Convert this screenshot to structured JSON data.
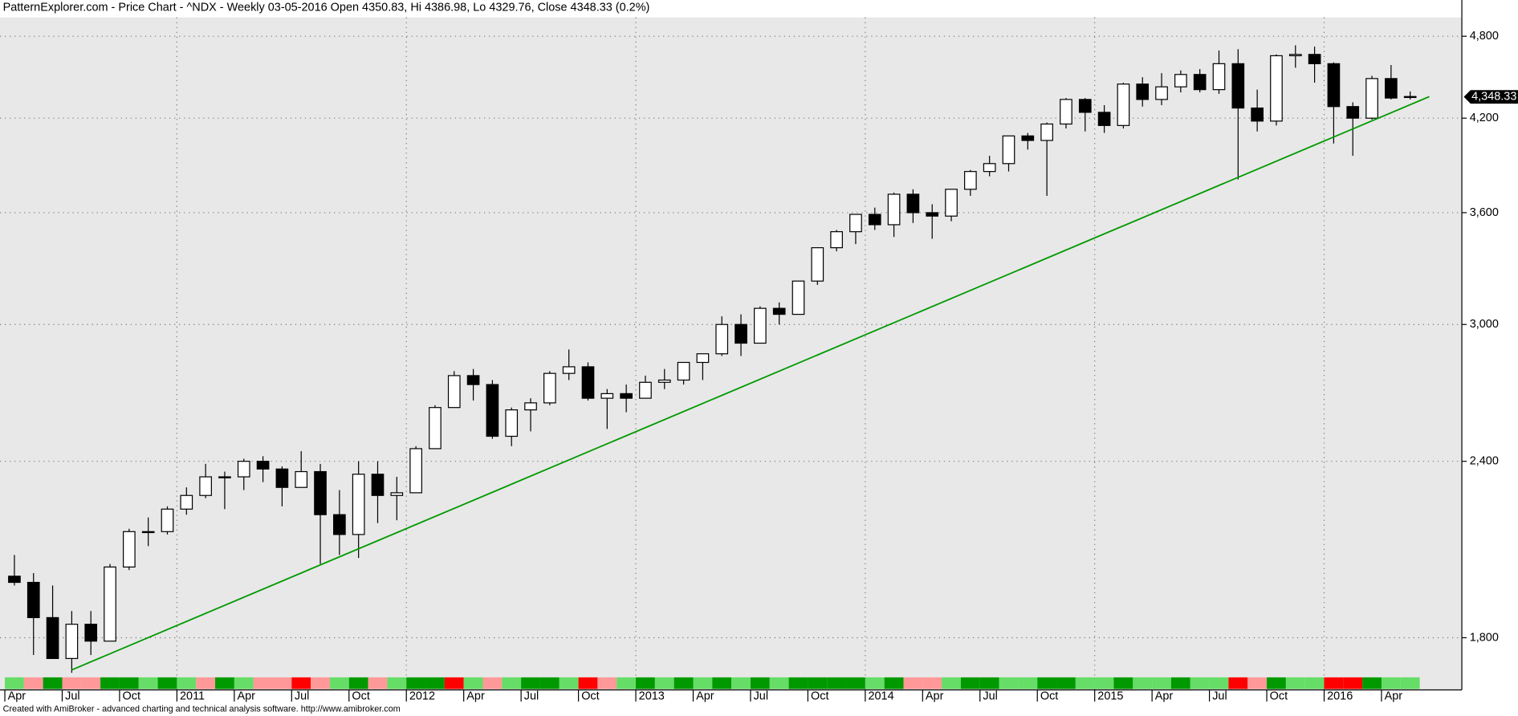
{
  "chart_data": {
    "type": "candlestick",
    "title": "PatternExplorer.com - Price Chart - ^NDX - Weekly 03-05-2016 Open 4350.83, Hi 4386.98, Lo 4329.76, Close 4348.33 (0.2%)",
    "footer": "Created with AmiBroker - advanced charting and technical analysis software. http://www.amibroker.com",
    "x": [
      "2010-04",
      "2010-05",
      "2010-06",
      "2010-07",
      "2010-08",
      "2010-09",
      "2010-10",
      "2010-11",
      "2010-12",
      "2011-01",
      "2011-02",
      "2011-03",
      "2011-04",
      "2011-05",
      "2011-06",
      "2011-07",
      "2011-08",
      "2011-09",
      "2011-10",
      "2011-11",
      "2011-12",
      "2012-01",
      "2012-02",
      "2012-03",
      "2012-04",
      "2012-05",
      "2012-06",
      "2012-07",
      "2012-08",
      "2012-09",
      "2012-10",
      "2012-11",
      "2012-12",
      "2013-01",
      "2013-02",
      "2013-03",
      "2013-04",
      "2013-05",
      "2013-06",
      "2013-07",
      "2013-08",
      "2013-09",
      "2013-10",
      "2013-11",
      "2013-12",
      "2014-01",
      "2014-02",
      "2014-03",
      "2014-04",
      "2014-05",
      "2014-06",
      "2014-07",
      "2014-08",
      "2014-09",
      "2014-10",
      "2014-11",
      "2014-12",
      "2015-01",
      "2015-02",
      "2015-03",
      "2015-04",
      "2015-05",
      "2015-06",
      "2015-07",
      "2015-08",
      "2015-09",
      "2015-10",
      "2015-11",
      "2015-12",
      "2016-01",
      "2016-02",
      "2016-03",
      "2016-04",
      "2016-05"
    ],
    "open": [
      1990,
      1970,
      1860,
      1740,
      1840,
      1790,
      2020,
      2140,
      2140,
      2220,
      2270,
      2340,
      2340,
      2400,
      2370,
      2300,
      2360,
      2200,
      2130,
      2350,
      2270,
      2280,
      2450,
      2620,
      2760,
      2720,
      2500,
      2610,
      2640,
      2770,
      2800,
      2660,
      2680,
      2660,
      2730,
      2740,
      2820,
      2860,
      3000,
      2910,
      3080,
      3050,
      3220,
      3400,
      3490,
      3590,
      3530,
      3710,
      3600,
      3580,
      3740,
      3850,
      3900,
      4080,
      4050,
      4160,
      4330,
      4240,
      4150,
      4440,
      4330,
      4420,
      4510,
      4400,
      4590,
      4270,
      4180,
      4650,
      4660,
      4590,
      4280,
      4200,
      4480,
      4350.83
    ],
    "high": [
      2060,
      2000,
      1960,
      1880,
      1880,
      2030,
      2150,
      2190,
      2230,
      2300,
      2390,
      2360,
      2410,
      2420,
      2380,
      2440,
      2390,
      2290,
      2400,
      2400,
      2340,
      2460,
      2630,
      2780,
      2790,
      2740,
      2620,
      2660,
      2780,
      2880,
      2820,
      2700,
      2720,
      2760,
      2790,
      2820,
      2860,
      3040,
      3050,
      3090,
      3110,
      3220,
      3400,
      3500,
      3590,
      3630,
      3720,
      3740,
      3650,
      3740,
      3860,
      3950,
      4080,
      4100,
      4170,
      4340,
      4340,
      4290,
      4450,
      4490,
      4520,
      4540,
      4550,
      4690,
      4700,
      4400,
      4660,
      4730,
      4720,
      4600,
      4310,
      4500,
      4580,
      4386.98
    ],
    "low": [
      1960,
      1750,
      1740,
      1700,
      1750,
      1790,
      2010,
      2090,
      2130,
      2200,
      2260,
      2220,
      2290,
      2320,
      2230,
      2300,
      2030,
      2060,
      2050,
      2170,
      2180,
      2280,
      2450,
      2620,
      2650,
      2490,
      2460,
      2520,
      2630,
      2740,
      2650,
      2530,
      2600,
      2660,
      2700,
      2720,
      2740,
      2850,
      2850,
      2910,
      3000,
      3050,
      3200,
      3380,
      3420,
      3500,
      3460,
      3540,
      3450,
      3550,
      3700,
      3820,
      3850,
      3990,
      3700,
      4130,
      4110,
      4100,
      4130,
      4280,
      4290,
      4380,
      4380,
      4370,
      3800,
      4110,
      4150,
      4560,
      4450,
      4030,
      3950,
      4190,
      4330,
      4329.76
    ],
    "close": [
      1970,
      1860,
      1740,
      1840,
      1790,
      2020,
      2140,
      2140,
      2220,
      2270,
      2340,
      2340,
      2400,
      2370,
      2300,
      2360,
      2200,
      2130,
      2350,
      2270,
      2280,
      2450,
      2620,
      2760,
      2720,
      2500,
      2610,
      2640,
      2770,
      2800,
      2660,
      2680,
      2660,
      2730,
      2740,
      2820,
      2860,
      3000,
      2910,
      3080,
      3050,
      3220,
      3400,
      3490,
      3590,
      3530,
      3710,
      3600,
      3580,
      3740,
      3850,
      3900,
      4080,
      4050,
      4160,
      4330,
      4240,
      4150,
      4440,
      4330,
      4420,
      4510,
      4400,
      4590,
      4270,
      4180,
      4650,
      4660,
      4590,
      4280,
      4200,
      4480,
      4340,
      4348.33
    ],
    "signal_colors": [
      "#66dd66",
      "#ff9999",
      "#009900",
      "#ff9999",
      "#ff9999",
      "#009900",
      "#009900",
      "#66dd66",
      "#009900",
      "#66dd66",
      "#ff9999",
      "#009900",
      "#66dd66",
      "#ff9999",
      "#ff9999",
      "#ff0000",
      "#ff9999",
      "#66dd66",
      "#009900",
      "#ff9999",
      "#66dd66",
      "#009900",
      "#009900",
      "#ff0000",
      "#66dd66",
      "#ff9999",
      "#66dd66",
      "#009900",
      "#009900",
      "#66dd66",
      "#ff0000",
      "#ff9999",
      "#66dd66",
      "#009900",
      "#66dd66",
      "#009900",
      "#66dd66",
      "#009900",
      "#66dd66",
      "#009900",
      "#66dd66",
      "#009900",
      "#009900",
      "#009900",
      "#009900",
      "#66dd66",
      "#009900",
      "#ff9999",
      "#ff9999",
      "#66dd66",
      "#009900",
      "#009900",
      "#66dd66",
      "#66dd66",
      "#009900",
      "#009900",
      "#66dd66",
      "#66dd66",
      "#009900",
      "#66dd66",
      "#66dd66",
      "#009900",
      "#66dd66",
      "#66dd66",
      "#ff0000",
      "#ff9999",
      "#009900",
      "#66dd66",
      "#66dd66",
      "#ff0000",
      "#ff0000",
      "#009900",
      "#66dd66",
      "#66dd66"
    ],
    "trendline": {
      "x": [
        "2010-07",
        "2016-06"
      ],
      "values": [
        1708,
        4350
      ],
      "color": "#009900"
    },
    "last_price": {
      "value": 4348.33,
      "label": "4,348.33"
    },
    "log_scale": true,
    "ylim": [
      1690,
      4950
    ],
    "yticks": [
      {
        "value": 1800,
        "label": "1,800"
      },
      {
        "value": 2400,
        "label": "2,400"
      },
      {
        "value": 3000,
        "label": "3,000"
      },
      {
        "value": 3600,
        "label": "3,600"
      },
      {
        "value": 4200,
        "label": "4,200"
      },
      {
        "value": 4800,
        "label": "4,800"
      }
    ],
    "xticks": [
      {
        "value": "2010-04",
        "label": "Apr"
      },
      {
        "value": "2010-07",
        "label": "Jul"
      },
      {
        "value": "2010-10",
        "label": "Oct"
      },
      {
        "value": "2011-01",
        "label": "2011"
      },
      {
        "value": "2011-04",
        "label": "Apr"
      },
      {
        "value": "2011-07",
        "label": "Jul"
      },
      {
        "value": "2011-10",
        "label": "Oct"
      },
      {
        "value": "2012-01",
        "label": "2012"
      },
      {
        "value": "2012-04",
        "label": "Apr"
      },
      {
        "value": "2012-07",
        "label": "Jul"
      },
      {
        "value": "2012-10",
        "label": "Oct"
      },
      {
        "value": "2013-01",
        "label": "2013"
      },
      {
        "value": "2013-04",
        "label": "Apr"
      },
      {
        "value": "2013-07",
        "label": "Jul"
      },
      {
        "value": "2013-10",
        "label": "Oct"
      },
      {
        "value": "2014-01",
        "label": "2014"
      },
      {
        "value": "2014-04",
        "label": "Apr"
      },
      {
        "value": "2014-07",
        "label": "Jul"
      },
      {
        "value": "2014-10",
        "label": "Oct"
      },
      {
        "value": "2015-01",
        "label": "2015"
      },
      {
        "value": "2015-04",
        "label": "Apr"
      },
      {
        "value": "2015-07",
        "label": "Jul"
      },
      {
        "value": "2015-10",
        "label": "Oct"
      },
      {
        "value": "2016-01",
        "label": "2016"
      },
      {
        "value": "2016-04",
        "label": "Apr"
      }
    ],
    "grid": true,
    "background": "#e8e8e8"
  }
}
